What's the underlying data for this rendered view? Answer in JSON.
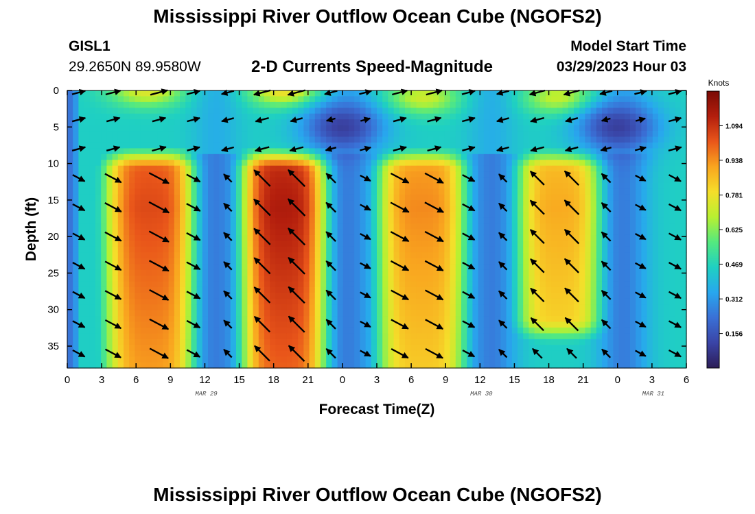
{
  "header": {
    "title": "Mississippi River Outflow Ocean Cube (NGOFS2)",
    "station_id": "GISL1",
    "station_coords": "29.2650N  89.9580W",
    "plot_title": "2-D Currents Speed-Magnitude",
    "model_start_label": "Model Start Time",
    "model_start_value": "03/29/2023 Hour 03"
  },
  "footer": {
    "title": "Mississippi River Outflow Ocean Cube (NGOFS2)"
  },
  "colors": {
    "colormap": [
      "#2c1d57",
      "#3a44a6",
      "#3a70d6",
      "#28a7ee",
      "#1fd0c2",
      "#54e97f",
      "#b8f031",
      "#f5de2a",
      "#f9a51f",
      "#e9561a",
      "#b31e0d",
      "#7a0b05"
    ],
    "arrow": "#000000"
  },
  "chart_data": {
    "type": "heatmap",
    "title": "2-D Currents Speed-Magnitude",
    "xlabel": "Forecast Time(Z)",
    "ylabel": "Depth (ft)",
    "x_ticks": [
      "0",
      "3",
      "6",
      "9",
      "12",
      "15",
      "18",
      "21",
      "0",
      "3",
      "6",
      "9",
      "12",
      "15",
      "18",
      "21",
      "0",
      "3",
      "6"
    ],
    "x_range_hours": [
      0,
      54
    ],
    "date_labels": [
      {
        "label": "MAR 29",
        "hour": 12
      },
      {
        "label": "MAR 30",
        "hour": 36
      },
      {
        "label": "MAR 31",
        "hour": 51
      }
    ],
    "y_ticks": [
      0,
      5,
      10,
      15,
      20,
      25,
      30,
      35
    ],
    "y_range_ft": [
      0,
      38
    ],
    "y_reversed": true,
    "colorbar": {
      "unit": "Knots",
      "ticks": [
        "1.094",
        "0.938",
        "0.781",
        "0.625",
        "0.469",
        "0.312",
        "0.156"
      ],
      "tick_values": [
        1.094,
        0.938,
        0.781,
        0.625,
        0.469,
        0.312,
        0.156
      ],
      "range": [
        0,
        1.25
      ]
    },
    "speed_maxima": [
      {
        "center_hour": 7.5,
        "depth_from_ft": 9,
        "depth_to_ft": 38,
        "peak_knots": 1.05
      },
      {
        "center_hour": 19,
        "depth_from_ft": 9,
        "depth_to_ft": 38,
        "peak_knots": 1.15
      },
      {
        "center_hour": 31,
        "depth_from_ft": 9,
        "depth_to_ft": 38,
        "peak_knots": 0.95
      },
      {
        "center_hour": 43,
        "depth_from_ft": 9,
        "depth_to_ft": 31,
        "peak_knots": 0.9
      }
    ],
    "surface_maxima": [
      {
        "center_hour": 7,
        "depth_ft": 0,
        "peak_knots": 0.75
      },
      {
        "center_hour": 19,
        "depth_ft": 0,
        "peak_knots": 0.8
      },
      {
        "center_hour": 31,
        "depth_ft": 1,
        "peak_knots": 0.72
      },
      {
        "center_hour": 43,
        "depth_ft": 1,
        "peak_knots": 0.72
      }
    ],
    "speed_minima": [
      {
        "center_hour": 24,
        "depth_ft": 5,
        "min_knots": 0.1
      },
      {
        "center_hour": 48,
        "depth_ft": 5,
        "min_knots": 0.1
      }
    ],
    "vector_hours": [
      1,
      4,
      8,
      11,
      14,
      17,
      20,
      23,
      26,
      29,
      32,
      35,
      38,
      41,
      44,
      47,
      50,
      53
    ],
    "vector_depths_ft": [
      0,
      4,
      8,
      12,
      16,
      20,
      24,
      28,
      32,
      36
    ],
    "grid": false
  }
}
